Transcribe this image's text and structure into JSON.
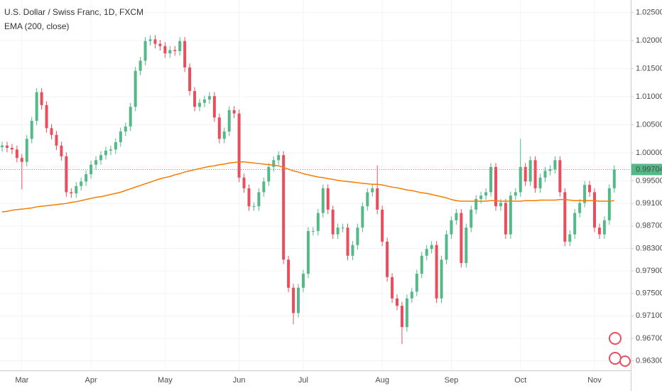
{
  "chart_data": {
    "type": "candlestick",
    "title": "U.S. Dollar / Swiss Franc, 1D, FXCM",
    "indicator_label": "EMA (200, close)",
    "up_color": "#53b987",
    "down_color": "#eb4d5c",
    "grid": true,
    "categories": [
      null,
      null,
      null,
      null,
      "Mar",
      null,
      null,
      null,
      null,
      null,
      null,
      null,
      null,
      null,
      null,
      null,
      null,
      null,
      "Apr",
      null,
      null,
      null,
      null,
      null,
      null,
      null,
      null,
      null,
      null,
      null,
      null,
      null,
      null,
      "May",
      null,
      null,
      null,
      null,
      null,
      null,
      null,
      null,
      null,
      null,
      null,
      null,
      null,
      null,
      "Jun",
      null,
      null,
      null,
      null,
      null,
      null,
      null,
      null,
      null,
      null,
      null,
      null,
      "Jul",
      null,
      null,
      null,
      null,
      null,
      null,
      null,
      null,
      null,
      null,
      null,
      null,
      null,
      null,
      null,
      "Aug",
      null,
      null,
      null,
      null,
      null,
      null,
      null,
      null,
      null,
      null,
      null,
      null,
      null,
      "Sep",
      null,
      null,
      null,
      null,
      null,
      null,
      null,
      null,
      null,
      null,
      null,
      null,
      null,
      "Oct",
      null,
      null,
      null,
      null,
      null,
      null,
      null,
      null,
      null,
      null,
      null,
      null,
      null,
      null,
      "Nov",
      null,
      null,
      null,
      null
    ],
    "open": [
      1.001,
      1.0013,
      1.0009,
      1.0006,
      0.9991,
      0.9984,
      1.0025,
      1.0057,
      1.0108,
      1.0085,
      1.0044,
      1.0032,
      1.0013,
      0.9994,
      0.993,
      0.9928,
      0.9941,
      0.9949,
      0.9962,
      0.9979,
      0.9987,
      0.9996,
      1.0004,
      1.0006,
      1.0019,
      1.0038,
      1.0047,
      1.0082,
      1.0146,
      1.0164,
      1.0199,
      1.0202,
      1.0194,
      1.019,
      1.0177,
      1.0183,
      1.0181,
      1.0199,
      1.0152,
      1.011,
      1.0082,
      1.0089,
      1.0095,
      1.0101,
      1.0063,
      1.0025,
      1.0038,
      1.0076,
      1.007,
      0.9956,
      0.9937,
      0.9905,
      0.9905,
      0.993,
      0.9949,
      0.9975,
      0.9987,
      0.9996,
      0.981,
      0.976,
      0.9715,
      0.976,
      0.9785,
      0.9861,
      0.9861,
      0.9893,
      0.9937,
      0.9899,
      0.9855,
      0.9867,
      0.9867,
      0.9817,
      0.9836,
      0.9867,
      0.9905,
      0.993,
      0.9937,
      0.9899,
      0.9842,
      0.9779,
      0.9741,
      0.9728,
      0.969,
      0.9741,
      0.9753,
      0.9785,
      0.9817,
      0.9829,
      0.9836,
      0.9741,
      0.981,
      0.9855,
      0.988,
      0.9893,
      0.9804,
      0.9867,
      0.9899,
      0.9918,
      0.9924,
      0.993,
      0.9975,
      0.9905,
      0.9911,
      0.9855,
      0.9924,
      0.993,
      0.9975,
      0.9949,
      0.9987,
      0.9937,
      0.9956,
      0.9968,
      0.9971,
      0.9987,
      0.993,
      0.9842,
      0.9855,
      0.9893,
      0.9911,
      0.9943,
      0.993,
      0.9867,
      0.9855,
      0.988,
      0.9937
    ],
    "high": [
      1.002,
      1.002,
      1.0016,
      1.0013,
      0.9998,
      1.0032,
      1.0064,
      1.0115,
      1.0115,
      1.0092,
      1.0051,
      1.0039,
      1.002,
      1.0001,
      0.9937,
      0.9948,
      0.9956,
      0.9969,
      0.9986,
      0.9994,
      1.0003,
      1.0011,
      1.0013,
      1.0026,
      1.0045,
      1.0054,
      1.0089,
      1.0153,
      1.0171,
      1.0206,
      1.0209,
      1.0209,
      1.0201,
      1.0197,
      1.019,
      1.019,
      1.0206,
      1.0206,
      1.0159,
      1.0117,
      1.0096,
      1.0102,
      1.0108,
      1.0108,
      1.007,
      1.0045,
      1.0083,
      1.0083,
      1.0077,
      0.9963,
      0.9944,
      0.9912,
      0.9937,
      0.9956,
      0.9982,
      0.9994,
      1.0003,
      1.0003,
      0.9817,
      0.9767,
      0.9767,
      0.9792,
      0.9868,
      0.9868,
      0.99,
      0.9944,
      0.9944,
      0.9906,
      0.9874,
      0.9874,
      0.9874,
      0.9843,
      0.9874,
      0.9912,
      0.9937,
      0.9944,
      0.9978,
      0.9906,
      0.9849,
      0.9786,
      0.9748,
      0.9735,
      0.9748,
      0.976,
      0.9792,
      0.9824,
      0.9836,
      0.9843,
      0.9843,
      0.9817,
      0.9862,
      0.9887,
      0.99,
      0.99,
      0.9874,
      0.9906,
      0.9925,
      0.9931,
      0.9937,
      0.9982,
      0.9982,
      0.9918,
      0.9918,
      0.9931,
      0.9937,
      1.0025,
      0.9982,
      0.9994,
      0.9994,
      0.9963,
      0.9975,
      0.9978,
      0.9994,
      0.9994,
      0.9937,
      0.9862,
      0.99,
      0.9918,
      0.995,
      0.995,
      0.9937,
      0.9874,
      0.9887,
      0.9944,
      0.9978
    ],
    "low": [
      1.0002,
      1.0001,
      0.9998,
      0.9983,
      0.9935,
      0.9976,
      1.0017,
      1.0049,
      1.0077,
      1.0036,
      1.0024,
      1.0005,
      0.9986,
      0.9922,
      0.992,
      0.992,
      0.9933,
      0.9941,
      0.9954,
      0.9971,
      0.9979,
      0.9988,
      0.9996,
      0.9998,
      1.0011,
      1.003,
      1.0039,
      1.0074,
      1.0138,
      1.0156,
      1.0191,
      1.0186,
      1.0182,
      1.0169,
      1.0169,
      1.0173,
      1.0173,
      1.0144,
      1.0102,
      1.0074,
      1.0074,
      1.0081,
      1.0087,
      1.0055,
      1.0017,
      1.0017,
      1.003,
      1.0062,
      0.9948,
      0.9929,
      0.9897,
      0.9897,
      0.9897,
      0.9922,
      0.9941,
      0.9967,
      0.9979,
      0.9802,
      0.9752,
      0.9695,
      0.9707,
      0.9752,
      0.9777,
      0.9853,
      0.9853,
      0.9885,
      0.9891,
      0.9847,
      0.9847,
      0.9859,
      0.9809,
      0.9809,
      0.9828,
      0.9859,
      0.9897,
      0.9922,
      0.9891,
      0.9834,
      0.9771,
      0.9733,
      0.972,
      0.966,
      0.9682,
      0.9733,
      0.9745,
      0.9777,
      0.9809,
      0.9821,
      0.9733,
      0.9733,
      0.9802,
      0.9847,
      0.9872,
      0.9796,
      0.9796,
      0.9859,
      0.9891,
      0.991,
      0.9916,
      0.9922,
      0.9897,
      0.9897,
      0.9847,
      0.9847,
      0.9916,
      0.9922,
      0.9941,
      0.9941,
      0.9929,
      0.9929,
      0.9948,
      0.996,
      0.9963,
      0.9922,
      0.9834,
      0.9834,
      0.9847,
      0.9885,
      0.9903,
      0.9922,
      0.9859,
      0.9847,
      0.9847,
      0.9872,
      0.9929
    ],
    "close": [
      1.0013,
      1.0009,
      1.0006,
      0.9991,
      0.9984,
      1.0025,
      1.0057,
      1.0108,
      1.0085,
      1.0044,
      1.0032,
      1.0013,
      0.9994,
      0.993,
      0.9928,
      0.9941,
      0.9949,
      0.9962,
      0.9979,
      0.9987,
      0.9996,
      1.0004,
      1.0006,
      1.0019,
      1.0038,
      1.0047,
      1.0082,
      1.0146,
      1.0164,
      1.0199,
      1.0202,
      1.0194,
      1.019,
      1.0177,
      1.0183,
      1.0181,
      1.0199,
      1.0152,
      1.011,
      1.0082,
      1.0089,
      1.0095,
      1.0101,
      1.0063,
      1.0025,
      1.0038,
      1.0076,
      1.007,
      0.9956,
      0.9937,
      0.9905,
      0.9905,
      0.993,
      0.9949,
      0.9975,
      0.9987,
      0.9996,
      0.981,
      0.976,
      0.9715,
      0.976,
      0.9785,
      0.9861,
      0.9861,
      0.9893,
      0.9937,
      0.9899,
      0.9855,
      0.9867,
      0.9867,
      0.9817,
      0.9836,
      0.9867,
      0.9905,
      0.993,
      0.9937,
      0.9899,
      0.9842,
      0.9779,
      0.9741,
      0.9728,
      0.969,
      0.9741,
      0.9753,
      0.9785,
      0.9817,
      0.9829,
      0.9836,
      0.9741,
      0.981,
      0.9855,
      0.988,
      0.9893,
      0.9804,
      0.9867,
      0.9899,
      0.9918,
      0.9924,
      0.993,
      0.9975,
      0.9905,
      0.9911,
      0.9855,
      0.9924,
      0.993,
      0.9975,
      0.9949,
      0.9987,
      0.9937,
      0.9956,
      0.9968,
      0.9971,
      0.9987,
      0.993,
      0.9842,
      0.9855,
      0.9893,
      0.9911,
      0.9943,
      0.993,
      0.9867,
      0.9855,
      0.988,
      0.9937,
      0.99704
    ],
    "ema": {
      "color": "#f57c00",
      "values": [
        0.9895,
        0.9896,
        0.9898,
        0.9899,
        0.99,
        0.9901,
        0.9902,
        0.9904,
        0.9905,
        0.9906,
        0.9907,
        0.9908,
        0.9909,
        0.991,
        0.9912,
        0.9913,
        0.9915,
        0.9917,
        0.9919,
        0.9921,
        0.9922,
        0.9924,
        0.9926,
        0.9928,
        0.993,
        0.9933,
        0.9936,
        0.9939,
        0.9942,
        0.9945,
        0.9948,
        0.9951,
        0.9954,
        0.9956,
        0.9958,
        0.9961,
        0.9963,
        0.9966,
        0.9968,
        0.997,
        0.9972,
        0.9974,
        0.9976,
        0.9977,
        0.9979,
        0.998,
        0.9982,
        0.9983,
        0.9984,
        0.9984,
        0.9983,
        0.9982,
        0.9981,
        0.998,
        0.9979,
        0.9978,
        0.9977,
        0.9974,
        0.9971,
        0.9968,
        0.9966,
        0.9963,
        0.9961,
        0.9959,
        0.9957,
        0.9956,
        0.9954,
        0.9953,
        0.9951,
        0.995,
        0.9949,
        0.9948,
        0.9947,
        0.9946,
        0.9945,
        0.9944,
        0.9944,
        0.9943,
        0.9941,
        0.9939,
        0.9938,
        0.9936,
        0.9934,
        0.9933,
        0.9931,
        0.9929,
        0.9928,
        0.9926,
        0.9924,
        0.9922,
        0.992,
        0.9917,
        0.9915,
        0.9914,
        0.9914,
        0.9914,
        0.9914,
        0.9914,
        0.9914,
        0.9915,
        0.9915,
        0.9914,
        0.9914,
        0.9914,
        0.9914,
        0.9914,
        0.9915,
        0.9915,
        0.9915,
        0.9916,
        0.9916,
        0.9916,
        0.9916,
        0.9917,
        0.9917,
        0.9916,
        0.9915,
        0.9915,
        0.9915,
        0.9915,
        0.9915,
        0.9914,
        0.9914,
        0.9914,
        0.9915
      ]
    },
    "ylim": [
      0.9613,
      1.0272
    ],
    "yticks": [
      {
        "value": 1.025,
        "label": "1.02500"
      },
      {
        "value": 1.02,
        "label": "1.02000"
      },
      {
        "value": 1.015,
        "label": "1.01500"
      },
      {
        "value": 1.01,
        "label": "1.01000"
      },
      {
        "value": 1.005,
        "label": "1.00500"
      },
      {
        "value": 1.0,
        "label": "1.00000"
      },
      {
        "value": 0.995,
        "label": "0.99500"
      },
      {
        "value": 0.991,
        "label": "0.99100"
      },
      {
        "value": 0.987,
        "label": "0.98700"
      },
      {
        "value": 0.983,
        "label": "0.98300"
      },
      {
        "value": 0.979,
        "label": "0.97900"
      },
      {
        "value": 0.975,
        "label": "0.97500"
      },
      {
        "value": 0.971,
        "label": "0.97100"
      },
      {
        "value": 0.967,
        "label": "0.96700"
      },
      {
        "value": 0.963,
        "label": "0.96300"
      }
    ],
    "last_price": 0.99704,
    "last_color": "#53b987"
  }
}
